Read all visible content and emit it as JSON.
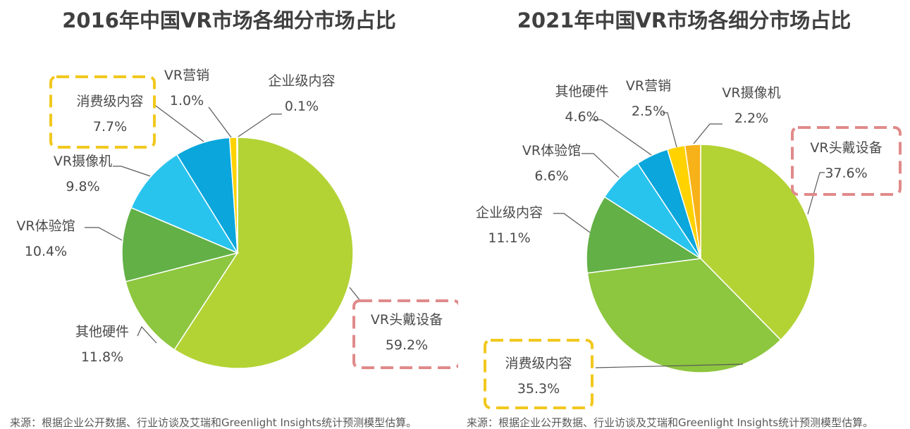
{
  "chart_data": [
    {
      "type": "pie",
      "title": "2016年中国VR市场各细分市场占比",
      "slices": [
        {
          "label": "VR头戴设备",
          "value": 59.2,
          "display": "59.2%",
          "color": "#b3d335",
          "highlight": "#e08a8a"
        },
        {
          "label": "其他硬件",
          "value": 11.8,
          "display": "11.8%",
          "color": "#8dc63f"
        },
        {
          "label": "VR体验馆",
          "value": 10.4,
          "display": "10.4%",
          "color": "#62b046"
        },
        {
          "label": "VR摄像机",
          "value": 9.8,
          "display": "9.8%",
          "color": "#29c4ee"
        },
        {
          "label": "消费级内容",
          "value": 7.7,
          "display": "7.7%",
          "color": "#0aa6dc",
          "highlight": "#f2c81e"
        },
        {
          "label": "VR营销",
          "value": 1.0,
          "display": "1.0%",
          "color": "#ffd200"
        },
        {
          "label": "企业级内容",
          "value": 0.1,
          "display": "0.1%",
          "color": "#f7a600"
        }
      ],
      "source": "来源：根据企业公开数据、行业访谈及艾瑞和Greenlight Insights统计预测模型估算。"
    },
    {
      "type": "pie",
      "title": "2021年中国VR市场各细分市场占比",
      "slices": [
        {
          "label": "VR头戴设备",
          "value": 37.6,
          "display": "37.6%",
          "color": "#b3d335",
          "highlight": "#e08a8a"
        },
        {
          "label": "消费级内容",
          "value": 35.3,
          "display": "35.3%",
          "color": "#8dc63f",
          "highlight": "#f2c81e"
        },
        {
          "label": "企业级内容",
          "value": 11.1,
          "display": "11.1%",
          "color": "#62b046"
        },
        {
          "label": "VR体验馆",
          "value": 6.6,
          "display": "6.6%",
          "color": "#29c4ee"
        },
        {
          "label": "其他硬件",
          "value": 4.6,
          "display": "4.6%",
          "color": "#0aa6dc"
        },
        {
          "label": "VR营销",
          "value": 2.5,
          "display": "2.5%",
          "color": "#ffd200"
        },
        {
          "label": "VR摄像机",
          "value": 2.2,
          "display": "2.2%",
          "color": "#f7b21a"
        }
      ],
      "source": "来源：根据企业公开数据、行业访谈及艾瑞和Greenlight Insights统计预测模型估算。"
    }
  ]
}
